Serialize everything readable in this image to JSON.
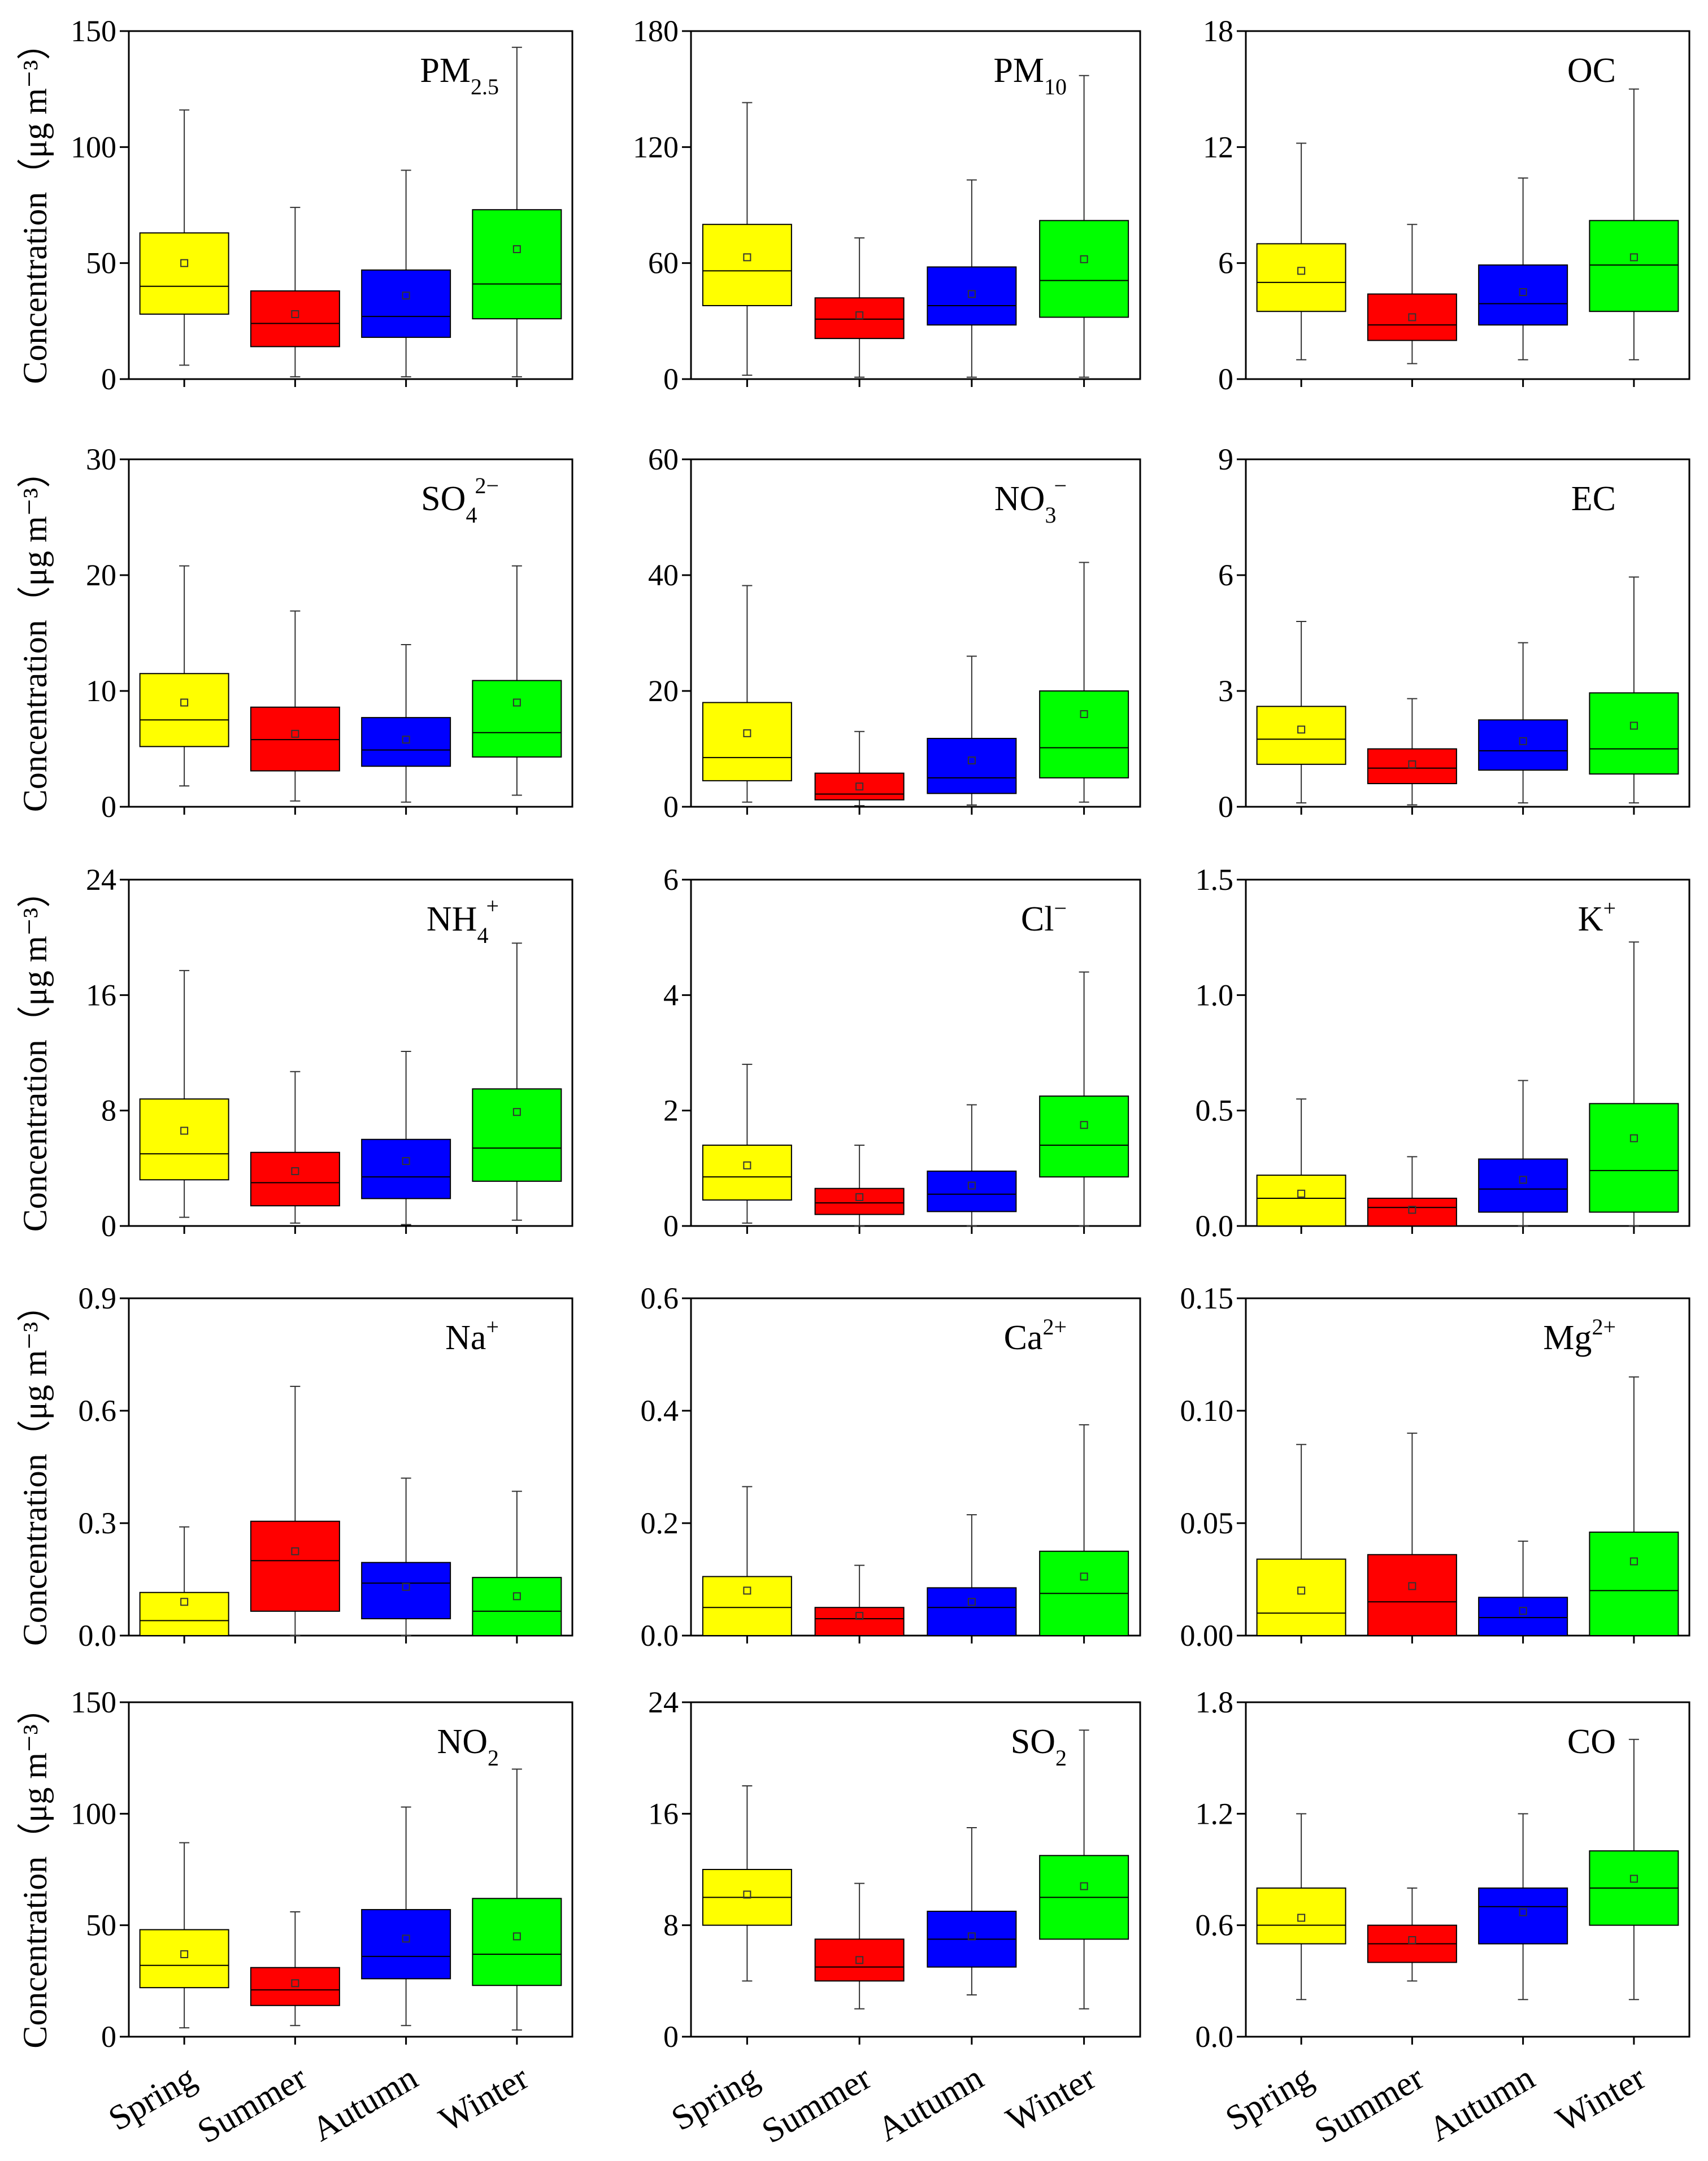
{
  "figure": {
    "ylabel": "Concentration（μg m⁻³）",
    "season_colors": {
      "Spring": "#ffff00",
      "Summer": "#ff0000",
      "Autumn": "#0000ff",
      "Winter": "#00ff00"
    }
  },
  "chart_data": [
    {
      "type": "box",
      "title": "PM2.5",
      "title_base": "PM",
      "title_sub": "2.5",
      "title_sup": "",
      "ylabel": "Concentration（μg m⁻³）",
      "ylim": [
        0,
        150
      ],
      "yticks": [
        0,
        50,
        100,
        150
      ],
      "ytick_labels": [
        "0",
        "50",
        "100",
        "150"
      ],
      "categories": [
        "Spring",
        "Summer",
        "Autumn",
        "Winter"
      ],
      "boxes": [
        {
          "name": "Spring",
          "lo": 6,
          "q1": 28,
          "median": 40,
          "q3": 63,
          "hi": 116,
          "mean": 50
        },
        {
          "name": "Summer",
          "lo": 1,
          "q1": 14,
          "median": 24,
          "q3": 38,
          "hi": 74,
          "mean": 28
        },
        {
          "name": "Autumn",
          "lo": 1,
          "q1": 18,
          "median": 27,
          "q3": 47,
          "hi": 90,
          "mean": 36
        },
        {
          "name": "Winter",
          "lo": 1,
          "q1": 26,
          "median": 41,
          "q3": 73,
          "hi": 143,
          "mean": 56
        }
      ]
    },
    {
      "type": "box",
      "title": "PM10",
      "title_base": "PM",
      "title_sub": "10",
      "title_sup": "",
      "ylabel": "",
      "ylim": [
        0,
        180
      ],
      "yticks": [
        0,
        60,
        120,
        180
      ],
      "ytick_labels": [
        "0",
        "60",
        "120",
        "180"
      ],
      "categories": [
        "Spring",
        "Summer",
        "Autumn",
        "Winter"
      ],
      "boxes": [
        {
          "name": "Spring",
          "lo": 2,
          "q1": 38,
          "median": 56,
          "q3": 80,
          "hi": 143,
          "mean": 63
        },
        {
          "name": "Summer",
          "lo": 1,
          "q1": 21,
          "median": 31,
          "q3": 42,
          "hi": 73,
          "mean": 33
        },
        {
          "name": "Autumn",
          "lo": 1,
          "q1": 28,
          "median": 38,
          "q3": 58,
          "hi": 103,
          "mean": 44
        },
        {
          "name": "Winter",
          "lo": 1,
          "q1": 32,
          "median": 51,
          "q3": 82,
          "hi": 157,
          "mean": 62
        }
      ]
    },
    {
      "type": "box",
      "title": "OC",
      "title_base": "OC",
      "title_sub": "",
      "title_sup": "",
      "ylabel": "",
      "ylim": [
        0,
        18
      ],
      "yticks": [
        0,
        6,
        12,
        18
      ],
      "ytick_labels": [
        "0",
        "6",
        "12",
        "18"
      ],
      "categories": [
        "Spring",
        "Summer",
        "Autumn",
        "Winter"
      ],
      "boxes": [
        {
          "name": "Spring",
          "lo": 1,
          "q1": 3.5,
          "median": 5.0,
          "q3": 7.0,
          "hi": 12.2,
          "mean": 5.6
        },
        {
          "name": "Summer",
          "lo": 0.8,
          "q1": 2.0,
          "median": 2.8,
          "q3": 4.4,
          "hi": 8.0,
          "mean": 3.2
        },
        {
          "name": "Autumn",
          "lo": 1,
          "q1": 2.8,
          "median": 3.9,
          "q3": 5.9,
          "hi": 10.4,
          "mean": 4.5
        },
        {
          "name": "Winter",
          "lo": 1,
          "q1": 3.5,
          "median": 5.9,
          "q3": 8.2,
          "hi": 15.0,
          "mean": 6.3
        }
      ]
    },
    {
      "type": "box",
      "title": "SO42−",
      "title_base": "SO",
      "title_sub": "4",
      "title_sup": "2−",
      "ylabel": "Concentration（μg m⁻³）",
      "ylim": [
        0,
        30
      ],
      "yticks": [
        0,
        10,
        20,
        30
      ],
      "ytick_labels": [
        "0",
        "10",
        "20",
        "30"
      ],
      "categories": [
        "Spring",
        "Summer",
        "Autumn",
        "Winter"
      ],
      "boxes": [
        {
          "name": "Spring",
          "lo": 1.8,
          "q1": 5.2,
          "median": 7.5,
          "q3": 11.5,
          "hi": 20.8,
          "mean": 9.0
        },
        {
          "name": "Summer",
          "lo": 0.5,
          "q1": 3.1,
          "median": 5.8,
          "q3": 8.6,
          "hi": 16.9,
          "mean": 6.3
        },
        {
          "name": "Autumn",
          "lo": 0.4,
          "q1": 3.5,
          "median": 4.9,
          "q3": 7.7,
          "hi": 14.0,
          "mean": 5.8
        },
        {
          "name": "Winter",
          "lo": 1,
          "q1": 4.3,
          "median": 6.4,
          "q3": 10.9,
          "hi": 20.8,
          "mean": 9.0
        }
      ]
    },
    {
      "type": "box",
      "title": "NO3−",
      "title_base": "NO",
      "title_sub": "3",
      "title_sup": "−",
      "ylabel": "",
      "ylim": [
        0,
        60
      ],
      "yticks": [
        0,
        20,
        40,
        60
      ],
      "ytick_labels": [
        "0",
        "20",
        "40",
        "60"
      ],
      "categories": [
        "Spring",
        "Summer",
        "Autumn",
        "Winter"
      ],
      "boxes": [
        {
          "name": "Spring",
          "lo": 0.8,
          "q1": 4.5,
          "median": 8.5,
          "q3": 18.0,
          "hi": 38.2,
          "mean": 12.7
        },
        {
          "name": "Summer",
          "lo": 0.2,
          "q1": 1.2,
          "median": 2.2,
          "q3": 5.8,
          "hi": 13.0,
          "mean": 3.5
        },
        {
          "name": "Autumn",
          "lo": 0.3,
          "q1": 2.3,
          "median": 5.0,
          "q3": 11.8,
          "hi": 26.0,
          "mean": 8.0
        },
        {
          "name": "Winter",
          "lo": 0.8,
          "q1": 5.0,
          "median": 10.2,
          "q3": 20.0,
          "hi": 42.2,
          "mean": 16.0
        }
      ]
    },
    {
      "type": "box",
      "title": "EC",
      "title_base": "EC",
      "title_sub": "",
      "title_sup": "",
      "ylabel": "",
      "ylim": [
        0,
        9
      ],
      "yticks": [
        0,
        3,
        6,
        9
      ],
      "ytick_labels": [
        "0",
        "3",
        "6",
        "9"
      ],
      "categories": [
        "Spring",
        "Summer",
        "Autumn",
        "Winter"
      ],
      "boxes": [
        {
          "name": "Spring",
          "lo": 0.1,
          "q1": 1.1,
          "median": 1.75,
          "q3": 2.6,
          "hi": 4.8,
          "mean": 2.0
        },
        {
          "name": "Summer",
          "lo": 0.05,
          "q1": 0.6,
          "median": 1.0,
          "q3": 1.5,
          "hi": 2.8,
          "mean": 1.1
        },
        {
          "name": "Autumn",
          "lo": 0.1,
          "q1": 0.95,
          "median": 1.45,
          "q3": 2.25,
          "hi": 4.25,
          "mean": 1.7
        },
        {
          "name": "Winter",
          "lo": 0.1,
          "q1": 0.85,
          "median": 1.5,
          "q3": 2.95,
          "hi": 5.95,
          "mean": 2.1
        }
      ]
    },
    {
      "type": "box",
      "title": "NH4+",
      "title_base": "NH",
      "title_sub": "4",
      "title_sup": "+",
      "ylabel": "Concentration（μg m⁻³）",
      "ylim": [
        0,
        24
      ],
      "yticks": [
        0,
        8,
        16,
        24
      ],
      "ytick_labels": [
        "0",
        "8",
        "16",
        "24"
      ],
      "categories": [
        "Spring",
        "Summer",
        "Autumn",
        "Winter"
      ],
      "boxes": [
        {
          "name": "Spring",
          "lo": 0.6,
          "q1": 3.2,
          "median": 5.0,
          "q3": 8.8,
          "hi": 17.7,
          "mean": 6.6
        },
        {
          "name": "Summer",
          "lo": 0.2,
          "q1": 1.4,
          "median": 3.0,
          "q3": 5.1,
          "hi": 10.7,
          "mean": 3.8
        },
        {
          "name": "Autumn",
          "lo": 0.1,
          "q1": 1.9,
          "median": 3.4,
          "q3": 6.0,
          "hi": 12.1,
          "mean": 4.5
        },
        {
          "name": "Winter",
          "lo": 0.4,
          "q1": 3.1,
          "median": 5.4,
          "q3": 9.5,
          "hi": 19.6,
          "mean": 7.9
        }
      ]
    },
    {
      "type": "box",
      "title": "Cl−",
      "title_base": "Cl",
      "title_sub": "",
      "title_sup": "−",
      "ylabel": "",
      "ylim": [
        0,
        6
      ],
      "yticks": [
        0,
        2,
        4,
        6
      ],
      "ytick_labels": [
        "0",
        "2",
        "4",
        "6"
      ],
      "categories": [
        "Spring",
        "Summer",
        "Autumn",
        "Winter"
      ],
      "boxes": [
        {
          "name": "Spring",
          "lo": 0.05,
          "q1": 0.45,
          "median": 0.85,
          "q3": 1.4,
          "hi": 2.8,
          "mean": 1.05
        },
        {
          "name": "Summer",
          "lo": 0.0,
          "q1": 0.2,
          "median": 0.4,
          "q3": 0.65,
          "hi": 1.4,
          "mean": 0.5
        },
        {
          "name": "Autumn",
          "lo": 0.0,
          "q1": 0.25,
          "median": 0.55,
          "q3": 0.95,
          "hi": 2.1,
          "mean": 0.7
        },
        {
          "name": "Winter",
          "lo": 0.0,
          "q1": 0.85,
          "median": 1.4,
          "q3": 2.25,
          "hi": 4.4,
          "mean": 1.75
        }
      ]
    },
    {
      "type": "box",
      "title": "K+",
      "title_base": "K",
      "title_sub": "",
      "title_sup": "+",
      "ylabel": "",
      "ylim": [
        0,
        1.5
      ],
      "yticks": [
        0,
        0.5,
        1.0,
        1.5
      ],
      "ytick_labels": [
        "0.0",
        "0.5",
        "1.0",
        "1.5"
      ],
      "categories": [
        "Spring",
        "Summer",
        "Autumn",
        "Winter"
      ],
      "boxes": [
        {
          "name": "Spring",
          "lo": 0.0,
          "q1": 0.0,
          "median": 0.12,
          "q3": 0.22,
          "hi": 0.55,
          "mean": 0.14
        },
        {
          "name": "Summer",
          "lo": 0.0,
          "q1": 0.0,
          "median": 0.08,
          "q3": 0.12,
          "hi": 0.3,
          "mean": 0.07
        },
        {
          "name": "Autumn",
          "lo": 0.0,
          "q1": 0.06,
          "median": 0.16,
          "q3": 0.29,
          "hi": 0.63,
          "mean": 0.2
        },
        {
          "name": "Winter",
          "lo": 0.0,
          "q1": 0.06,
          "median": 0.24,
          "q3": 0.53,
          "hi": 1.23,
          "mean": 0.38
        }
      ]
    },
    {
      "type": "box",
      "title": "Na+",
      "title_base": "Na",
      "title_sub": "",
      "title_sup": "+",
      "ylabel": "Concentration（μg m⁻³）",
      "ylim": [
        0,
        0.9
      ],
      "yticks": [
        0,
        0.3,
        0.6,
        0.9
      ],
      "ytick_labels": [
        "0.0",
        "0.3",
        "0.6",
        "0.9"
      ],
      "categories": [
        "Spring",
        "Summer",
        "Autumn",
        "Winter"
      ],
      "boxes": [
        {
          "name": "Spring",
          "lo": 0.0,
          "q1": 0.0,
          "median": 0.04,
          "q3": 0.115,
          "hi": 0.29,
          "mean": 0.09
        },
        {
          "name": "Summer",
          "lo": 0.0,
          "q1": 0.065,
          "median": 0.2,
          "q3": 0.305,
          "hi": 0.665,
          "mean": 0.225
        },
        {
          "name": "Autumn",
          "lo": 0.0,
          "q1": 0.045,
          "median": 0.14,
          "q3": 0.195,
          "hi": 0.42,
          "mean": 0.13
        },
        {
          "name": "Winter",
          "lo": 0.0,
          "q1": 0.0,
          "median": 0.065,
          "q3": 0.155,
          "hi": 0.385,
          "mean": 0.105
        }
      ]
    },
    {
      "type": "box",
      "title": "Ca2+",
      "title_base": "Ca",
      "title_sub": "",
      "title_sup": "2+",
      "ylabel": "",
      "ylim": [
        0,
        0.6
      ],
      "yticks": [
        0,
        0.2,
        0.4,
        0.6
      ],
      "ytick_labels": [
        "0.0",
        "0.2",
        "0.4",
        "0.6"
      ],
      "categories": [
        "Spring",
        "Summer",
        "Autumn",
        "Winter"
      ],
      "boxes": [
        {
          "name": "Spring",
          "lo": 0.0,
          "q1": 0.0,
          "median": 0.05,
          "q3": 0.105,
          "hi": 0.265,
          "mean": 0.08
        },
        {
          "name": "Summer",
          "lo": 0.0,
          "q1": 0.0,
          "median": 0.03,
          "q3": 0.05,
          "hi": 0.125,
          "mean": 0.035
        },
        {
          "name": "Autumn",
          "lo": 0.0,
          "q1": 0.0,
          "median": 0.05,
          "q3": 0.085,
          "hi": 0.215,
          "mean": 0.06
        },
        {
          "name": "Winter",
          "lo": 0.0,
          "q1": 0.0,
          "median": 0.075,
          "q3": 0.15,
          "hi": 0.375,
          "mean": 0.105
        }
      ]
    },
    {
      "type": "box",
      "title": "Mg2+",
      "title_base": "Mg",
      "title_sub": "",
      "title_sup": "2+",
      "ylabel": "",
      "ylim": [
        0,
        0.15
      ],
      "yticks": [
        0,
        0.05,
        0.1,
        0.15
      ],
      "ytick_labels": [
        "0.00",
        "0.05",
        "0.10",
        "0.15"
      ],
      "categories": [
        "Spring",
        "Summer",
        "Autumn",
        "Winter"
      ],
      "boxes": [
        {
          "name": "Spring",
          "lo": 0.0,
          "q1": 0.0,
          "median": 0.01,
          "q3": 0.034,
          "hi": 0.085,
          "mean": 0.02
        },
        {
          "name": "Summer",
          "lo": 0.0,
          "q1": 0.0,
          "median": 0.015,
          "q3": 0.036,
          "hi": 0.09,
          "mean": 0.022
        },
        {
          "name": "Autumn",
          "lo": 0.0,
          "q1": 0.0,
          "median": 0.008,
          "q3": 0.017,
          "hi": 0.042,
          "mean": 0.011
        },
        {
          "name": "Winter",
          "lo": 0.0,
          "q1": 0.0,
          "median": 0.02,
          "q3": 0.046,
          "hi": 0.115,
          "mean": 0.033
        }
      ]
    },
    {
      "type": "box",
      "title": "NO2",
      "title_base": "NO",
      "title_sub": "2",
      "title_sup": "",
      "ylabel": "Concentration（μg m⁻³）",
      "ylim": [
        0,
        150
      ],
      "yticks": [
        0,
        50,
        100,
        150
      ],
      "ytick_labels": [
        "0",
        "50",
        "100",
        "150"
      ],
      "categories": [
        "Spring",
        "Summer",
        "Autumn",
        "Winter"
      ],
      "boxes": [
        {
          "name": "Spring",
          "lo": 4,
          "q1": 22,
          "median": 32,
          "q3": 48,
          "hi": 87,
          "mean": 37
        },
        {
          "name": "Summer",
          "lo": 5,
          "q1": 14,
          "median": 21,
          "q3": 31,
          "hi": 56,
          "mean": 24
        },
        {
          "name": "Autumn",
          "lo": 5,
          "q1": 26,
          "median": 36,
          "q3": 57,
          "hi": 103,
          "mean": 44
        },
        {
          "name": "Winter",
          "lo": 3,
          "q1": 23,
          "median": 37,
          "q3": 62,
          "hi": 120,
          "mean": 45
        }
      ]
    },
    {
      "type": "box",
      "title": "SO2",
      "title_base": "SO",
      "title_sub": "2",
      "title_sup": "",
      "ylabel": "",
      "ylim": [
        0,
        24
      ],
      "yticks": [
        0,
        8,
        16,
        24
      ],
      "ytick_labels": [
        "0",
        "8",
        "16",
        "24"
      ],
      "categories": [
        "Spring",
        "Summer",
        "Autumn",
        "Winter"
      ],
      "boxes": [
        {
          "name": "Spring",
          "lo": 4,
          "q1": 8,
          "median": 10,
          "q3": 12,
          "hi": 18,
          "mean": 10.2
        },
        {
          "name": "Summer",
          "lo": 2,
          "q1": 4,
          "median": 5,
          "q3": 7,
          "hi": 11,
          "mean": 5.5
        },
        {
          "name": "Autumn",
          "lo": 3,
          "q1": 5,
          "median": 7,
          "q3": 9,
          "hi": 15,
          "mean": 7.2
        },
        {
          "name": "Winter",
          "lo": 2,
          "q1": 7,
          "median": 10,
          "q3": 13,
          "hi": 22,
          "mean": 10.8
        }
      ]
    },
    {
      "type": "box",
      "title": "CO",
      "title_base": "CO",
      "title_sub": "",
      "title_sup": "",
      "ylabel": "",
      "ylim": [
        0,
        1.8
      ],
      "yticks": [
        0,
        0.6,
        1.2,
        1.8
      ],
      "ytick_labels": [
        "0.0",
        "0.6",
        "1.2",
        "1.8"
      ],
      "categories": [
        "Spring",
        "Summer",
        "Autumn",
        "Winter"
      ],
      "boxes": [
        {
          "name": "Spring",
          "lo": 0.2,
          "q1": 0.5,
          "median": 0.6,
          "q3": 0.8,
          "hi": 1.2,
          "mean": 0.64
        },
        {
          "name": "Summer",
          "lo": 0.3,
          "q1": 0.4,
          "median": 0.5,
          "q3": 0.6,
          "hi": 0.8,
          "mean": 0.52
        },
        {
          "name": "Autumn",
          "lo": 0.2,
          "q1": 0.5,
          "median": 0.7,
          "q3": 0.8,
          "hi": 1.2,
          "mean": 0.67
        },
        {
          "name": "Winter",
          "lo": 0.2,
          "q1": 0.6,
          "median": 0.8,
          "q3": 1.0,
          "hi": 1.6,
          "mean": 0.85
        }
      ]
    }
  ]
}
